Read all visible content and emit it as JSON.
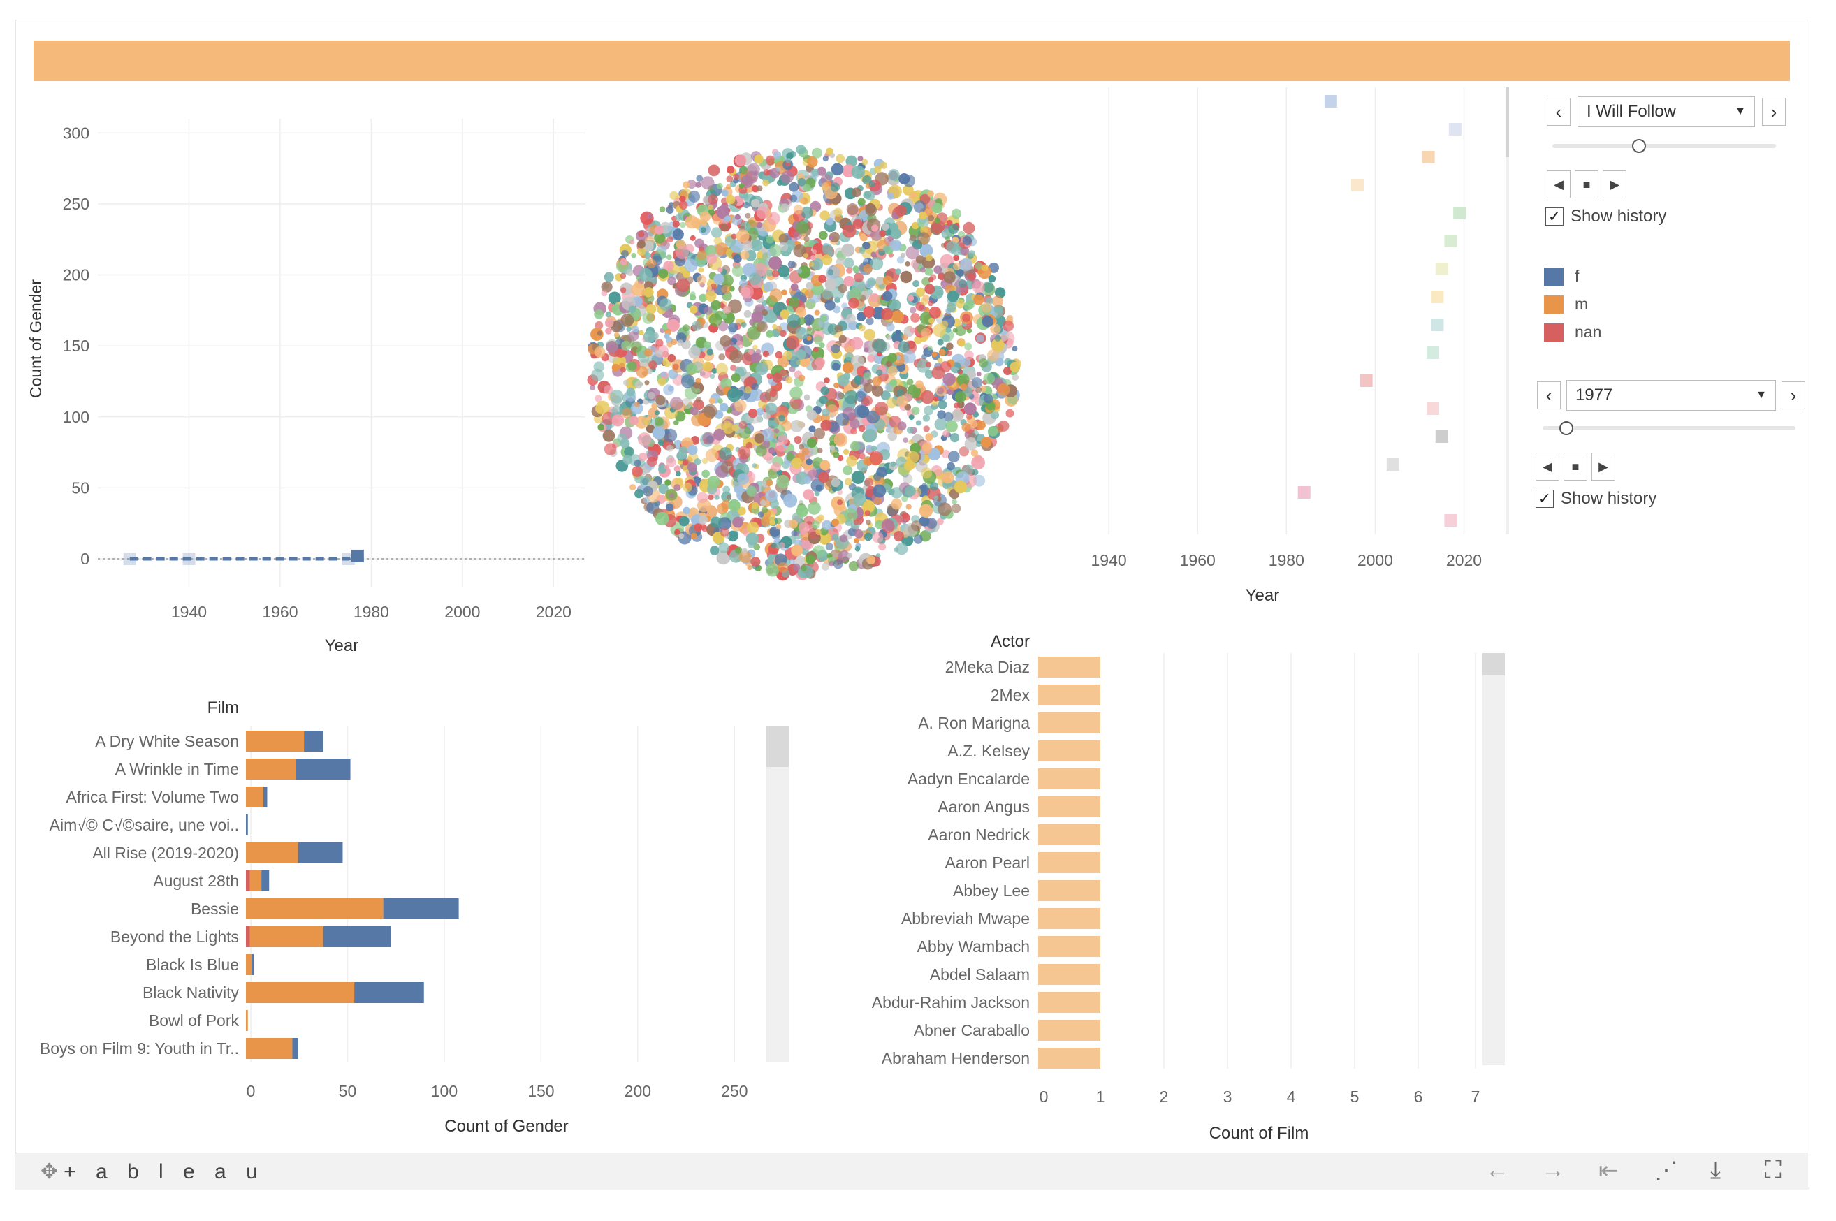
{
  "colors": {
    "f": "#5578a6",
    "m": "#e8954a",
    "nan": "#d65f5f",
    "banner": "#f5b97a",
    "actor_bar": "#f5c592"
  },
  "line_chart": {
    "ylabel": "Count of Gender",
    "xlabel": "Year",
    "y_ticks": [
      "300",
      "250",
      "200",
      "150",
      "100",
      "50",
      "0"
    ],
    "x_ticks": [
      "1940",
      "1960",
      "1980",
      "2000",
      "2020"
    ]
  },
  "chart_data": [
    {
      "type": "line",
      "title": "",
      "xlabel": "Year",
      "ylabel": "Count of Gender",
      "ylim": [
        0,
        310
      ],
      "xlim": [
        1920,
        2027
      ],
      "series": [
        {
          "name": "f",
          "x": [
            1927,
            1940,
            1975,
            1977
          ],
          "y": [
            0,
            0,
            0,
            2
          ]
        }
      ]
    },
    {
      "type": "scatter",
      "title": "",
      "xlabel": "Year",
      "xlim": [
        1920,
        2027
      ],
      "points_year": [
        1990,
        2018,
        2012,
        1996,
        2019,
        2017,
        2015,
        2014,
        2014,
        2013,
        1998,
        2013,
        2015,
        2004,
        1984,
        2017
      ]
    },
    {
      "type": "bar",
      "orientation": "horizontal",
      "xlabel": "Count of Gender",
      "ylabel": "Film",
      "xlim": [
        0,
        260
      ],
      "categories": [
        "A Dry White Season",
        "A Wrinkle in Time",
        "Africa First: Volume Two",
        "Aim√© C√©saire, une voi..",
        "All Rise (2019-2020)",
        "August 28th",
        "Bessie",
        "Beyond the Lights",
        "Black Is Blue",
        "Black Nativity",
        "Bowl of Pork",
        "Boys on Film 9: Youth in Tr.."
      ],
      "series": [
        {
          "name": "nan",
          "values": [
            0,
            0,
            0,
            0,
            0,
            2,
            0,
            2,
            0,
            0,
            0,
            0
          ]
        },
        {
          "name": "m",
          "values": [
            30,
            26,
            9,
            0,
            27,
            6,
            71,
            38,
            3,
            56,
            1,
            24
          ]
        },
        {
          "name": "f",
          "values": [
            10,
            28,
            2,
            1,
            23,
            4,
            39,
            35,
            1,
            36,
            0,
            3
          ]
        }
      ]
    },
    {
      "type": "bar",
      "orientation": "horizontal",
      "xlabel": "Count of Film",
      "ylabel": "Actor",
      "xlim": [
        0,
        7
      ],
      "categories": [
        "2Meka Diaz",
        "2Mex",
        "A. Ron Marigna",
        "A.Z. Kelsey",
        "Aadyn Encalarde",
        "Aaron Angus",
        "Aaron Nedrick",
        "Aaron Pearl",
        "Abbey Lee",
        "Abbreviah Mwape",
        "Abby Wambach",
        "Abdel Salaam",
        "Abdur-Rahim Jackson",
        "Abner Caraballo",
        "Abraham Henderson"
      ],
      "values": [
        1,
        1,
        1,
        1,
        1,
        1,
        1,
        1,
        1,
        1,
        1,
        1,
        1,
        1,
        1
      ]
    }
  ],
  "scatter_chart": {
    "xlabel": "Year",
    "x_ticks": [
      "1940",
      "1960",
      "1980",
      "2000",
      "2020"
    ]
  },
  "film_chart": {
    "header": "Film",
    "xlabel": "Count of Gender",
    "x_ticks": [
      "0",
      "50",
      "100",
      "150",
      "200",
      "250"
    ]
  },
  "actor_chart": {
    "header": "Actor",
    "xlabel": "Count of Film",
    "x_ticks": [
      "0",
      "1",
      "2",
      "3",
      "4",
      "5",
      "6",
      "7"
    ]
  },
  "controls": {
    "film_filter": {
      "value": "I Will Follow",
      "prev": "‹",
      "next": "›"
    },
    "year_filter": {
      "value": "1977",
      "prev": "‹",
      "next": "›"
    },
    "show_history_1": "Show history",
    "show_history_2": "Show history",
    "check": "✓"
  },
  "legend": [
    {
      "label": "f",
      "color": "#5578a6"
    },
    {
      "label": "m",
      "color": "#e8954a"
    },
    {
      "label": "nan",
      "color": "#d65f5f"
    }
  ],
  "footer": {
    "logo": "+ a b l e a u",
    "icons": [
      "undo-icon",
      "redo-icon",
      "revert-icon",
      "share-icon",
      "download-icon",
      "fullscreen-icon"
    ]
  }
}
